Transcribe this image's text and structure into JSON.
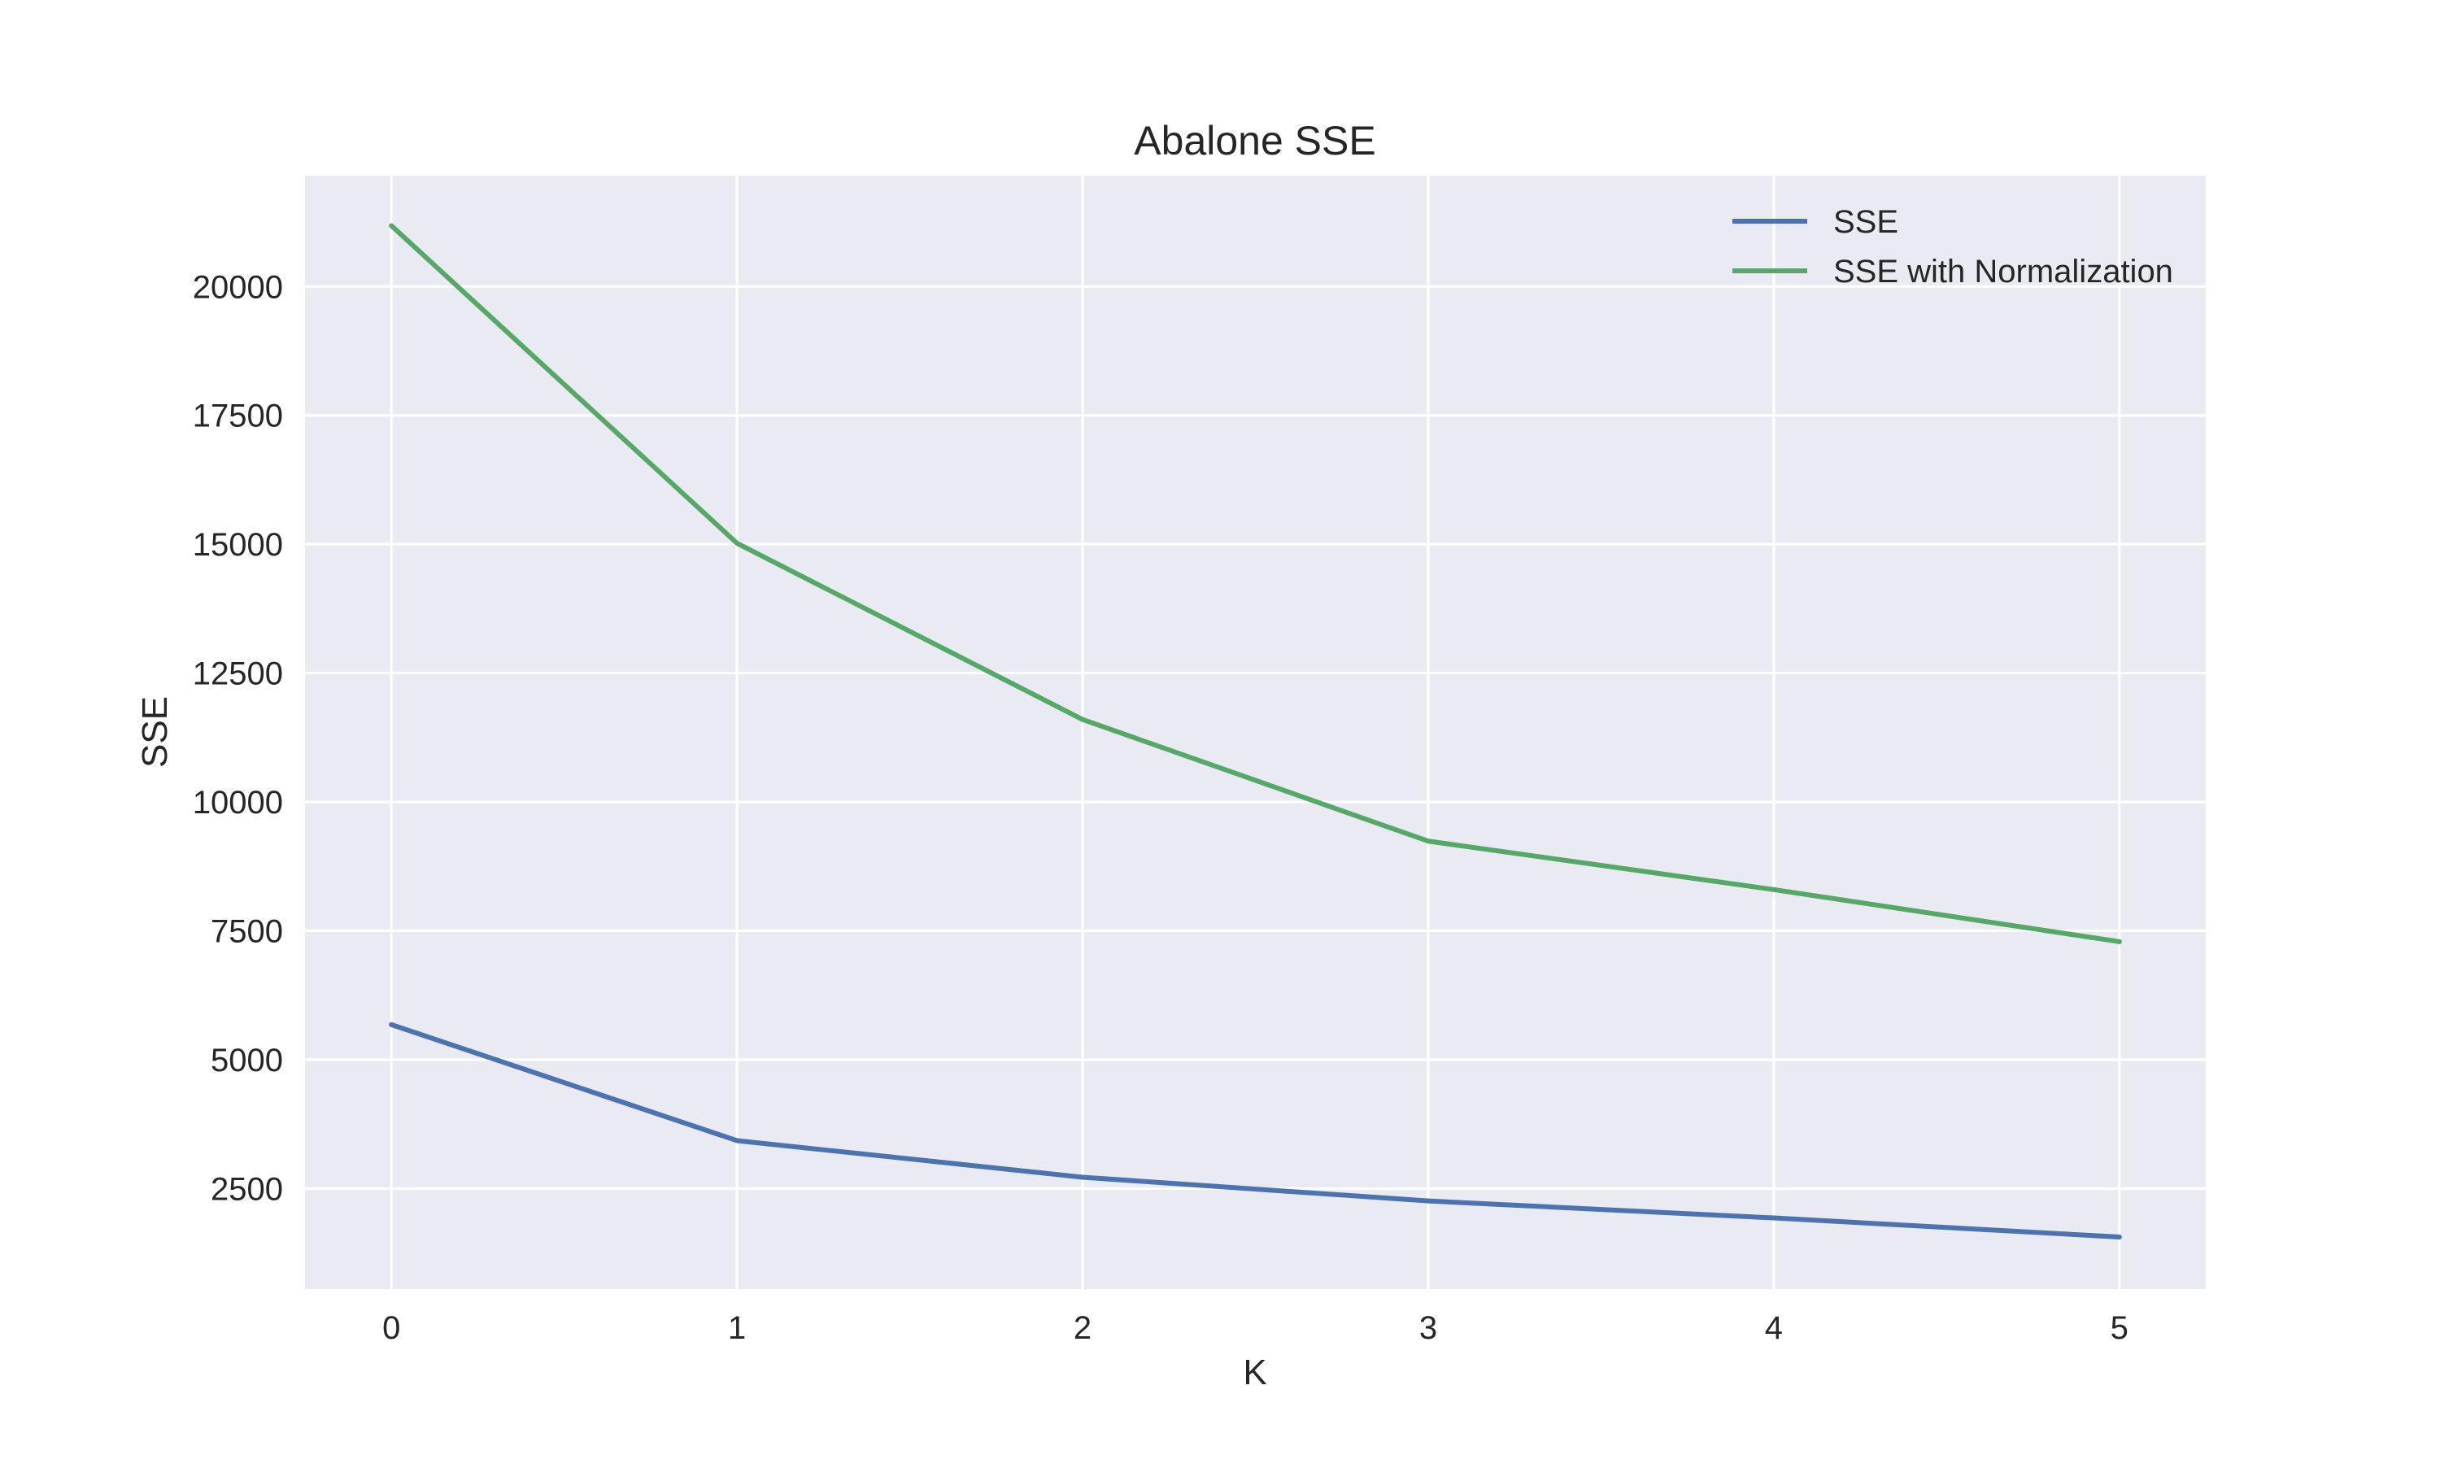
{
  "chart_data": {
    "type": "line",
    "title": "Abalone SSE",
    "xlabel": "K",
    "ylabel": "SSE",
    "x": [
      0,
      1,
      2,
      3,
      4,
      5
    ],
    "x_ticks": [
      0,
      1,
      2,
      3,
      4,
      5
    ],
    "y_ticks": [
      2500,
      5000,
      7500,
      10000,
      12500,
      15000,
      17500,
      20000
    ],
    "xlim": [
      -0.25,
      5.25
    ],
    "ylim": [
      550,
      22150
    ],
    "grid": true,
    "legend_position": "top-right",
    "series": [
      {
        "name": "SSE",
        "color": "#4c72b0",
        "values": [
          5680,
          3430,
          2720,
          2260,
          1930,
          1560
        ]
      },
      {
        "name": "SSE with Normalization",
        "color": "#55a868",
        "values": [
          21180,
          15020,
          11600,
          9240,
          8300,
          7290
        ]
      }
    ],
    "colors": {
      "plot_background": "#eaeaf2",
      "grid": "#ffffff"
    }
  }
}
